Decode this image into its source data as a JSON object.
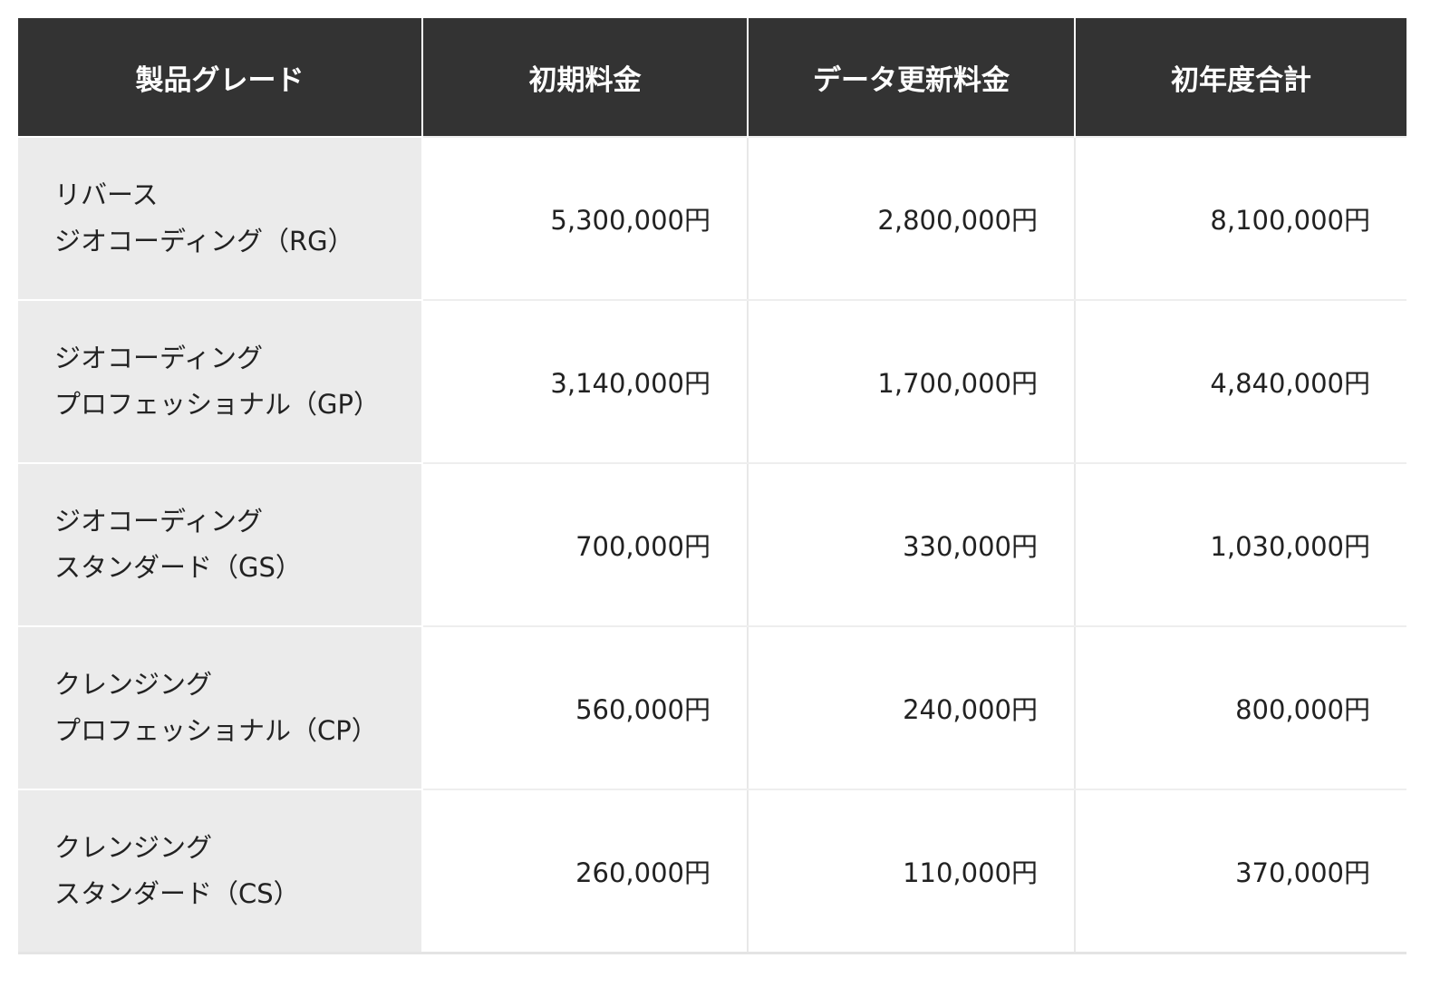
{
  "table": {
    "headers": [
      "製品グレード",
      "初期料金",
      "データ更新料金",
      "初年度合計"
    ],
    "rows": [
      {
        "grade_line1": "リバース",
        "grade_line2": "ジオコーディング（RG）",
        "initial": "5,300,000円",
        "update": "2,800,000円",
        "total": "8,100,000円"
      },
      {
        "grade_line1": "ジオコーディング",
        "grade_line2": "プロフェッショナル（GP）",
        "initial": "3,140,000円",
        "update": "1,700,000円",
        "total": "4,840,000円"
      },
      {
        "grade_line1": "ジオコーディング",
        "grade_line2": "スタンダード（GS）",
        "initial": "700,000円",
        "update": "330,000円",
        "total": "1,030,000円"
      },
      {
        "grade_line1": "クレンジング",
        "grade_line2": "プロフェッショナル（CP）",
        "initial": "560,000円",
        "update": "240,000円",
        "total": "800,000円"
      },
      {
        "grade_line1": "クレンジング",
        "grade_line2": "スタンダード（CS）",
        "initial": "260,000円",
        "update": "110,000円",
        "total": "370,000円"
      }
    ]
  },
  "colors": {
    "header_bg": "#333333",
    "header_text": "#ffffff",
    "grade_cell_bg": "#ebebeb",
    "cell_bg": "#ffffff",
    "text": "#222222"
  }
}
